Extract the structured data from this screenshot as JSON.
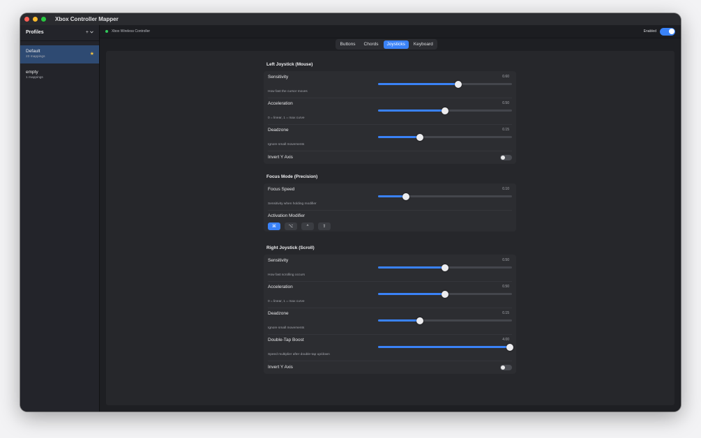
{
  "window": {
    "title": "Xbox Controller Mapper"
  },
  "sidebar": {
    "title": "Profiles",
    "add_label": "+",
    "profiles": [
      {
        "name": "Default",
        "sub": "23 mappings",
        "active": true
      },
      {
        "name": "empty",
        "sub": "1 mappings",
        "active": false
      }
    ]
  },
  "topbar": {
    "controller": "Xbox Wireless Controller",
    "enabled_label": "Enabled"
  },
  "tabs": [
    "Buttons",
    "Chords",
    "Joysticks",
    "Keyboard"
  ],
  "left": {
    "title": "Left Joystick (Mouse)",
    "sensitivity": {
      "label": "Sensitivity",
      "desc": "How fast the cursor moves",
      "value": "0.60",
      "fraction": 0.6
    },
    "acceleration": {
      "label": "Acceleration",
      "desc": "0 = linear, 1 = max curve",
      "value": "0.50",
      "fraction": 0.5
    },
    "deadzone": {
      "label": "Deadzone",
      "desc": "Ignore small movements",
      "value": "0.15",
      "fraction": 0.31
    },
    "invert": {
      "label": "Invert Y Axis"
    }
  },
  "focus": {
    "title": "Focus Mode (Precision)",
    "speed": {
      "label": "Focus Speed",
      "desc": "Sensitivity when holding modifier",
      "value": "0.10",
      "fraction": 0.21
    },
    "modifier": {
      "label": "Activation Modifier",
      "keys": [
        "⌘",
        "⌥",
        "^",
        "⇧"
      ]
    }
  },
  "right": {
    "title": "Right Joystick (Scroll)",
    "sensitivity": {
      "label": "Sensitivity",
      "desc": "How fast scrolling occurs",
      "value": "0.50",
      "fraction": 0.5
    },
    "acceleration": {
      "label": "Acceleration",
      "desc": "0 = linear, 1 = max curve",
      "value": "0.50",
      "fraction": 0.5
    },
    "deadzone": {
      "label": "Deadzone",
      "desc": "Ignore small movements",
      "value": "0.15",
      "fraction": 0.31
    },
    "boost": {
      "label": "Double-Tap Boost",
      "desc": "Speed multiplier after double-tap up/down",
      "value": "4.00",
      "fraction": 1.0
    },
    "invert": {
      "label": "Invert Y Axis"
    }
  },
  "colors": {
    "accent": "#3a82f7",
    "connected": "#30c85a",
    "star": "#f5c542"
  }
}
